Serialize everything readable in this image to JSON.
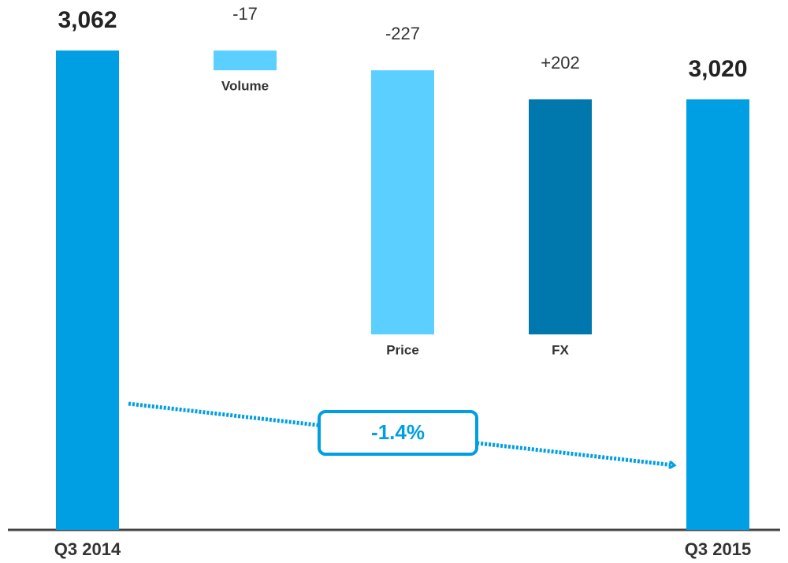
{
  "chart_data": {
    "type": "waterfall",
    "categories": [
      "Q3 2014",
      "Volume",
      "Price",
      "FX",
      "Q3 2015"
    ],
    "measures": [
      "total",
      "relative",
      "relative",
      "relative",
      "total"
    ],
    "values": [
      3062,
      -17,
      -227,
      202,
      3020
    ],
    "value_labels": [
      "3,062",
      "-17",
      "-227",
      "+202",
      "3,020"
    ],
    "colors": [
      "#009fe3",
      "#5bcfff",
      "#5bcfff",
      "#0077ad",
      "#009fe3"
    ],
    "ylim": [
      2650,
      3100
    ],
    "annotation": "-1.4%"
  }
}
